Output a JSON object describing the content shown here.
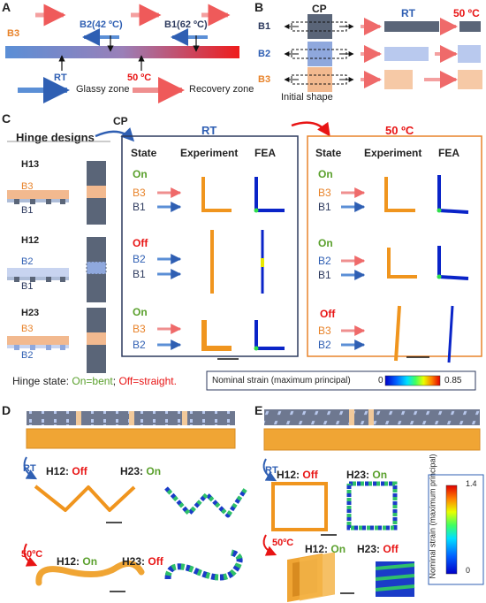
{
  "colors": {
    "b1": "#5a6578",
    "b2": "#8fa8dd",
    "b3": "#f2b98f",
    "orange": "#e8832a",
    "blue": "#2f5fb3",
    "green": "#5aa02c",
    "red": "#e81414",
    "box_left": "#2d3a5e",
    "box_right": "#e8832a",
    "gauge_outline": "#2f5fb3"
  },
  "panel_labels": {
    "a": "A",
    "b": "B",
    "c": "C",
    "d": "D",
    "e": "E"
  },
  "panel_a": {
    "b3": "B3",
    "b2": "B2(42 ºC)",
    "b1": "B1(62 ºC)",
    "rt": "RT",
    "t50": "50 ºC",
    "glassy": "Glassy zone",
    "recovery": "Recovery zone"
  },
  "panel_b": {
    "cp": "CP",
    "rt": "RT",
    "t50": "50 ºC",
    "b1": "B1",
    "b2": "B2",
    "b3": "B3",
    "initial": "Initial shape"
  },
  "panel_c": {
    "hinge_designs": "Hinge designs",
    "cp": "CP",
    "rt": "RT",
    "t50": "50 ºC",
    "headers": {
      "state": "State",
      "experiment": "Experiment",
      "fea": "FEA"
    },
    "hinges": [
      {
        "name": "H13",
        "top": "B3",
        "bottom": "B1"
      },
      {
        "name": "H12",
        "top": "B2",
        "bottom": "B1"
      },
      {
        "name": "H23",
        "top": "B3",
        "bottom": "B2"
      }
    ],
    "rt_rows": [
      {
        "state": "On",
        "l1": "B3",
        "l2": "B1"
      },
      {
        "state": "Off",
        "l1": "B2",
        "l2": "B1"
      },
      {
        "state": "On",
        "l1": "B3",
        "l2": "B2"
      }
    ],
    "hot_rows": [
      {
        "state": "On",
        "l1": "B3",
        "l2": "B1"
      },
      {
        "state": "On",
        "l1": "B2",
        "l2": "B1"
      },
      {
        "state": "Off",
        "l1": "B3",
        "l2": "B2"
      }
    ],
    "hinge_state_label": "Hinge state:",
    "on_bent": "On=bent",
    "semicolon": ";",
    "off_straight": "Off=straight.",
    "strain_label": "Nominal strain (maximum principal)",
    "strain_min": "0",
    "strain_max": "0.85"
  },
  "panel_d": {
    "rt": "RT",
    "t50": "50ºC",
    "h12": "H12:",
    "h23": "H23:",
    "rt_h12": "Off",
    "rt_h23": "On",
    "hot_h12": "On",
    "hot_h23": "Off"
  },
  "panel_e": {
    "rt": "RT",
    "t50": "50ºC",
    "h12": "H12:",
    "h23": "H23:",
    "rt_h12": "Off",
    "rt_h23": "On",
    "hot_h12": "On",
    "hot_h23": "Off",
    "gauge_label": "Nominal strain (maximum principal)",
    "gauge_max": "1.4",
    "gauge_min": "0"
  }
}
